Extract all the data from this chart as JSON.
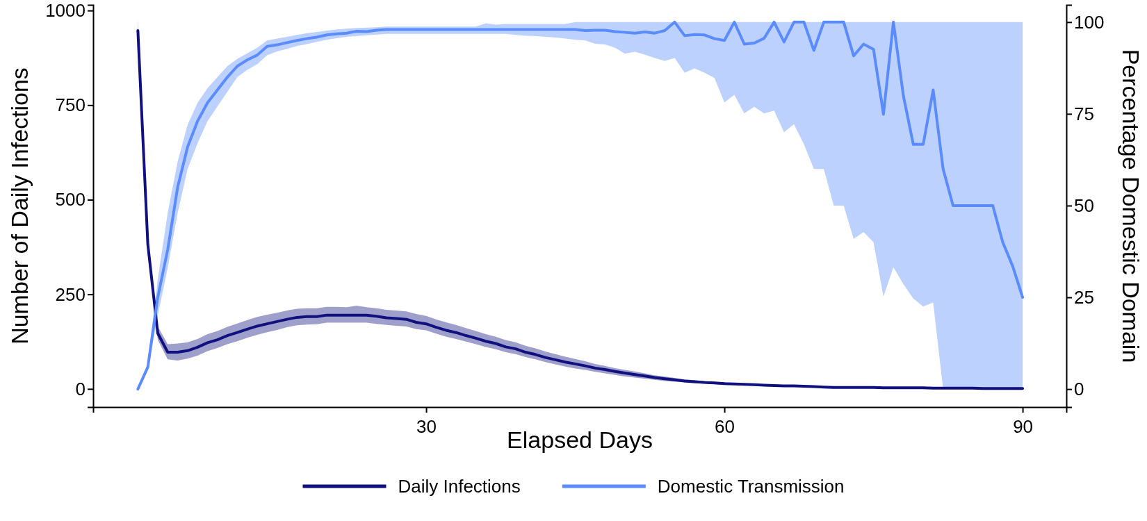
{
  "chart_data": {
    "type": "line",
    "xlabel": "Elapsed Days",
    "ylabel": "Number of Daily Infections",
    "y2label": "Percentage Domestic Domain",
    "x": [
      1,
      2,
      3,
      4,
      5,
      6,
      7,
      8,
      9,
      10,
      11,
      12,
      13,
      14,
      15,
      16,
      17,
      18,
      19,
      20,
      21,
      22,
      23,
      24,
      25,
      26,
      27,
      28,
      29,
      30,
      31,
      32,
      33,
      34,
      35,
      36,
      37,
      38,
      39,
      40,
      41,
      42,
      43,
      44,
      45,
      46,
      47,
      48,
      49,
      50,
      51,
      52,
      53,
      54,
      55,
      56,
      57,
      58,
      59,
      60,
      61,
      62,
      63,
      64,
      65,
      66,
      67,
      68,
      69,
      70,
      71,
      72,
      73,
      74,
      75,
      76,
      77,
      78,
      79,
      80,
      81,
      82,
      83,
      84,
      85,
      86,
      87,
      88,
      89,
      90
    ],
    "xlim": [
      -3.5,
      94.4
    ],
    "xticks": [
      30,
      60,
      90
    ],
    "ylim": [
      -48,
      1015
    ],
    "yticks": [
      0,
      250,
      500,
      750,
      1000
    ],
    "y2lim": [
      -4.9,
      104.7
    ],
    "y2ticks": [
      0,
      25,
      50,
      75,
      100
    ],
    "legend": "bottom",
    "grid": false,
    "line_style": "solid",
    "series": [
      {
        "name": "Daily Infections",
        "color": "#10107f",
        "values": [
          947,
          382,
          147,
          97,
          97,
          101,
          110,
          122,
          130,
          141,
          149,
          158,
          166,
          172,
          178,
          184,
          189,
          191,
          191,
          195,
          195,
          195,
          195,
          195,
          192,
          188,
          186,
          184,
          176,
          172,
          163,
          155,
          149,
          141,
          134,
          126,
          120,
          111,
          106,
          97,
          91,
          83,
          77,
          71,
          66,
          61,
          55,
          51,
          46,
          42,
          38,
          34,
          30,
          27,
          24,
          21,
          19,
          17,
          16,
          14,
          13,
          12,
          11,
          10,
          9,
          8,
          8,
          7,
          6,
          5,
          4,
          4,
          4,
          4,
          4,
          3,
          3,
          3,
          3,
          3,
          2,
          2,
          2,
          2,
          2,
          1,
          1,
          1,
          1,
          1
        ],
        "lower": [
          940,
          375,
          130,
          78,
          75,
          80,
          88,
          100,
          108,
          118,
          126,
          135,
          143,
          150,
          156,
          163,
          168,
          170,
          171,
          175,
          175,
          175,
          175,
          175,
          172,
          169,
          167,
          165,
          158,
          155,
          146,
          138,
          132,
          125,
          118,
          111,
          105,
          97,
          92,
          84,
          78,
          71,
          65,
          59,
          54,
          50,
          45,
          41,
          37,
          33,
          30,
          27,
          24,
          21,
          19,
          17,
          15,
          14,
          13,
          11,
          11,
          10,
          9,
          9,
          8,
          7,
          7,
          6,
          6,
          5,
          4,
          4,
          4,
          4,
          4,
          3,
          3,
          3,
          3,
          3,
          2,
          2,
          2,
          2,
          2,
          1,
          1,
          1,
          1,
          1
        ],
        "upper": [
          975,
          390,
          165,
          118,
          120,
          123,
          132,
          145,
          153,
          164,
          173,
          182,
          190,
          196,
          201,
          207,
          212,
          213,
          213,
          217,
          217,
          216,
          220,
          216,
          213,
          209,
          207,
          205,
          198,
          193,
          184,
          176,
          169,
          161,
          153,
          145,
          138,
          129,
          123,
          114,
          107,
          99,
          92,
          85,
          79,
          73,
          66,
          61,
          55,
          50,
          46,
          41,
          36,
          33,
          29,
          25,
          23,
          20,
          19,
          17,
          15,
          14,
          13,
          12,
          10,
          9,
          9,
          8,
          7,
          5,
          4,
          4,
          4,
          4,
          4,
          3,
          3,
          3,
          3,
          3,
          2,
          2,
          2,
          2,
          2,
          1,
          1,
          1,
          1,
          1
        ]
      },
      {
        "name": "Domestic Transmission",
        "color": "#5b8cff",
        "axis": "y2",
        "values": [
          0,
          6,
          25,
          38,
          55,
          66,
          73,
          78,
          81.5,
          85,
          88,
          89.7,
          91,
          93.4,
          93.8,
          94.4,
          95,
          95.5,
          95.9,
          96.5,
          96.8,
          97,
          97.5,
          97.4,
          97.8,
          98,
          98,
          98,
          98,
          98,
          98,
          98,
          98,
          98,
          98,
          98,
          98,
          98,
          98,
          98,
          98,
          98,
          98,
          98,
          98,
          97.7,
          97.8,
          97.8,
          97.4,
          97.2,
          97,
          97.3,
          97,
          97.7,
          100,
          96.3,
          96.6,
          96.5,
          95.5,
          95,
          100,
          94,
          94.3,
          95.6,
          100,
          94.6,
          100,
          100,
          92.3,
          100,
          100,
          100,
          90.8,
          94,
          92.6,
          74.9,
          100,
          80,
          66.7,
          66.7,
          81.5,
          60,
          50,
          50,
          50,
          50,
          50,
          40,
          33.5,
          25
        ],
        "lower": [
          0,
          5,
          20,
          33,
          48,
          60,
          67,
          73,
          77,
          81,
          85,
          87,
          88.5,
          91,
          92,
          92.7,
          93.5,
          94,
          94.6,
          95.2,
          95.6,
          96,
          96.2,
          96.4,
          96.6,
          96.8,
          96.8,
          96.8,
          96.8,
          96.8,
          96.8,
          96.8,
          96.8,
          96.8,
          96.8,
          96.8,
          96.8,
          96.8,
          96.5,
          96.3,
          96.2,
          96,
          95.8,
          95.5,
          95.2,
          95,
          94.1,
          93.9,
          93,
          91.4,
          91.9,
          91.1,
          90.2,
          89.4,
          90.2,
          86.2,
          87.4,
          86.2,
          84.8,
          78.1,
          80.2,
          75.1,
          76.9,
          75.1,
          75.9,
          70,
          72.2,
          66.7,
          60,
          60,
          50,
          50,
          40.9,
          42.8,
          40,
          25.2,
          33.2,
          28.6,
          24.7,
          22.5,
          23.6,
          0,
          0,
          0,
          0,
          0,
          0,
          0,
          0,
          0
        ],
        "upper": [
          0,
          7,
          30,
          48,
          62,
          72,
          78,
          82,
          85,
          88,
          90,
          91.5,
          93,
          95,
          95.5,
          96,
          96.5,
          97,
          97.3,
          97.7,
          98,
          98.2,
          98.4,
          98.5,
          98.6,
          98.8,
          98.8,
          98.8,
          98.8,
          98.8,
          98.8,
          98.8,
          98.8,
          98.8,
          98.8,
          99.7,
          99.3,
          99.5,
          99.5,
          99.5,
          99.5,
          99.5,
          99.5,
          99.5,
          100,
          100,
          100,
          100,
          100,
          100,
          100,
          100,
          100,
          100,
          100,
          100,
          100,
          100,
          100,
          100,
          100,
          100,
          100,
          100,
          100,
          100,
          100,
          100,
          100,
          100,
          100,
          100,
          100,
          100,
          100,
          100,
          100,
          100,
          100,
          100,
          100,
          100,
          100,
          100,
          100,
          100,
          100,
          100,
          100,
          100
        ]
      }
    ]
  }
}
